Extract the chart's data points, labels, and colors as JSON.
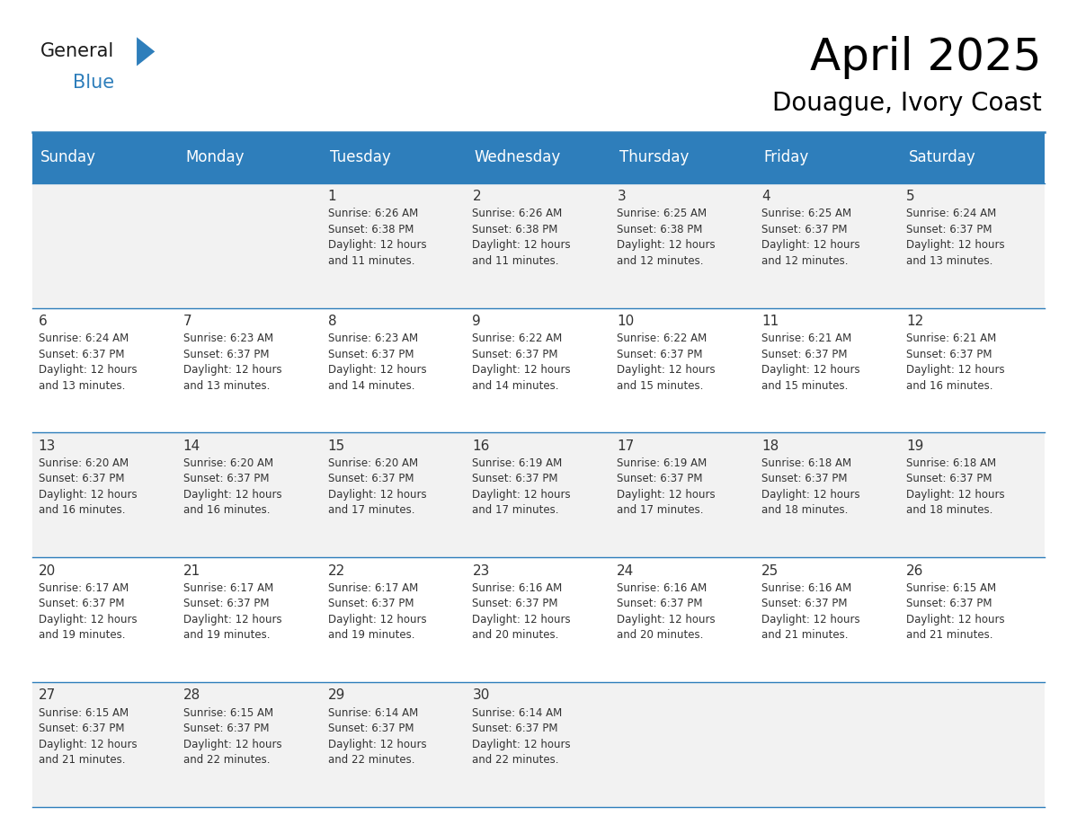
{
  "title": "April 2025",
  "subtitle": "Douague, Ivory Coast",
  "header_bg_color": "#2E7EBB",
  "header_text_color": "#FFFFFF",
  "row_bg_odd": "#F2F2F2",
  "row_bg_even": "#FFFFFF",
  "cell_text_color": "#333333",
  "grid_line_color": "#2E7EBB",
  "days_of_week": [
    "Sunday",
    "Monday",
    "Tuesday",
    "Wednesday",
    "Thursday",
    "Friday",
    "Saturday"
  ],
  "title_fontsize": 36,
  "subtitle_fontsize": 20,
  "header_fontsize": 12,
  "cell_day_fontsize": 11,
  "cell_info_fontsize": 8.5,
  "logo_general_color": "#1a1a1a",
  "logo_blue_color": "#2E7EBB",
  "logo_triangle_color": "#2E7EBB",
  "calendar_data": [
    [
      {
        "day": 0,
        "info": ""
      },
      {
        "day": 0,
        "info": ""
      },
      {
        "day": 1,
        "info": "Sunrise: 6:26 AM\nSunset: 6:38 PM\nDaylight: 12 hours\nand 11 minutes."
      },
      {
        "day": 2,
        "info": "Sunrise: 6:26 AM\nSunset: 6:38 PM\nDaylight: 12 hours\nand 11 minutes."
      },
      {
        "day": 3,
        "info": "Sunrise: 6:25 AM\nSunset: 6:38 PM\nDaylight: 12 hours\nand 12 minutes."
      },
      {
        "day": 4,
        "info": "Sunrise: 6:25 AM\nSunset: 6:37 PM\nDaylight: 12 hours\nand 12 minutes."
      },
      {
        "day": 5,
        "info": "Sunrise: 6:24 AM\nSunset: 6:37 PM\nDaylight: 12 hours\nand 13 minutes."
      }
    ],
    [
      {
        "day": 6,
        "info": "Sunrise: 6:24 AM\nSunset: 6:37 PM\nDaylight: 12 hours\nand 13 minutes."
      },
      {
        "day": 7,
        "info": "Sunrise: 6:23 AM\nSunset: 6:37 PM\nDaylight: 12 hours\nand 13 minutes."
      },
      {
        "day": 8,
        "info": "Sunrise: 6:23 AM\nSunset: 6:37 PM\nDaylight: 12 hours\nand 14 minutes."
      },
      {
        "day": 9,
        "info": "Sunrise: 6:22 AM\nSunset: 6:37 PM\nDaylight: 12 hours\nand 14 minutes."
      },
      {
        "day": 10,
        "info": "Sunrise: 6:22 AM\nSunset: 6:37 PM\nDaylight: 12 hours\nand 15 minutes."
      },
      {
        "day": 11,
        "info": "Sunrise: 6:21 AM\nSunset: 6:37 PM\nDaylight: 12 hours\nand 15 minutes."
      },
      {
        "day": 12,
        "info": "Sunrise: 6:21 AM\nSunset: 6:37 PM\nDaylight: 12 hours\nand 16 minutes."
      }
    ],
    [
      {
        "day": 13,
        "info": "Sunrise: 6:20 AM\nSunset: 6:37 PM\nDaylight: 12 hours\nand 16 minutes."
      },
      {
        "day": 14,
        "info": "Sunrise: 6:20 AM\nSunset: 6:37 PM\nDaylight: 12 hours\nand 16 minutes."
      },
      {
        "day": 15,
        "info": "Sunrise: 6:20 AM\nSunset: 6:37 PM\nDaylight: 12 hours\nand 17 minutes."
      },
      {
        "day": 16,
        "info": "Sunrise: 6:19 AM\nSunset: 6:37 PM\nDaylight: 12 hours\nand 17 minutes."
      },
      {
        "day": 17,
        "info": "Sunrise: 6:19 AM\nSunset: 6:37 PM\nDaylight: 12 hours\nand 17 minutes."
      },
      {
        "day": 18,
        "info": "Sunrise: 6:18 AM\nSunset: 6:37 PM\nDaylight: 12 hours\nand 18 minutes."
      },
      {
        "day": 19,
        "info": "Sunrise: 6:18 AM\nSunset: 6:37 PM\nDaylight: 12 hours\nand 18 minutes."
      }
    ],
    [
      {
        "day": 20,
        "info": "Sunrise: 6:17 AM\nSunset: 6:37 PM\nDaylight: 12 hours\nand 19 minutes."
      },
      {
        "day": 21,
        "info": "Sunrise: 6:17 AM\nSunset: 6:37 PM\nDaylight: 12 hours\nand 19 minutes."
      },
      {
        "day": 22,
        "info": "Sunrise: 6:17 AM\nSunset: 6:37 PM\nDaylight: 12 hours\nand 19 minutes."
      },
      {
        "day": 23,
        "info": "Sunrise: 6:16 AM\nSunset: 6:37 PM\nDaylight: 12 hours\nand 20 minutes."
      },
      {
        "day": 24,
        "info": "Sunrise: 6:16 AM\nSunset: 6:37 PM\nDaylight: 12 hours\nand 20 minutes."
      },
      {
        "day": 25,
        "info": "Sunrise: 6:16 AM\nSunset: 6:37 PM\nDaylight: 12 hours\nand 21 minutes."
      },
      {
        "day": 26,
        "info": "Sunrise: 6:15 AM\nSunset: 6:37 PM\nDaylight: 12 hours\nand 21 minutes."
      }
    ],
    [
      {
        "day": 27,
        "info": "Sunrise: 6:15 AM\nSunset: 6:37 PM\nDaylight: 12 hours\nand 21 minutes."
      },
      {
        "day": 28,
        "info": "Sunrise: 6:15 AM\nSunset: 6:37 PM\nDaylight: 12 hours\nand 22 minutes."
      },
      {
        "day": 29,
        "info": "Sunrise: 6:14 AM\nSunset: 6:37 PM\nDaylight: 12 hours\nand 22 minutes."
      },
      {
        "day": 30,
        "info": "Sunrise: 6:14 AM\nSunset: 6:37 PM\nDaylight: 12 hours\nand 22 minutes."
      },
      {
        "day": 0,
        "info": ""
      },
      {
        "day": 0,
        "info": ""
      },
      {
        "day": 0,
        "info": ""
      }
    ]
  ]
}
